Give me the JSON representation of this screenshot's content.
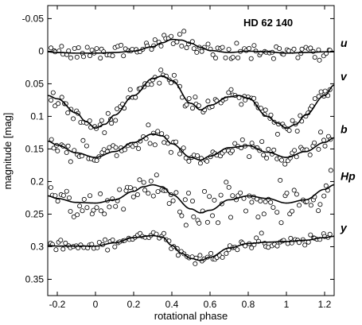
{
  "chart_data": {
    "type": "scatter",
    "title": "HD 62 140",
    "xlabel": "rotational phase",
    "ylabel": "magnitude [mag]",
    "xlim": [
      -0.25,
      1.25
    ],
    "ylim": [
      -0.07,
      0.375
    ],
    "y_inverted": true,
    "grid": false,
    "x_ticks": [
      -0.2,
      0,
      0.2,
      0.4,
      0.6,
      0.8,
      1,
      1.2
    ],
    "x_tick_labels": [
      "-0.2",
      "0",
      "0.2",
      "0.4",
      "0.6",
      "0.8",
      "1",
      "1.2"
    ],
    "y_ticks": [
      -0.05,
      0,
      0.05,
      0.1,
      0.15,
      0.2,
      0.25,
      0.3,
      0.35
    ],
    "y_tick_labels": [
      "-0.05",
      "0",
      "0.05",
      "0.1",
      "0.15",
      "0.2",
      "0.25",
      "0.3",
      "0.35"
    ],
    "series": [
      {
        "name": "u",
        "fit_x": [
          -0.25,
          -0.2,
          -0.1,
          0,
          0.1,
          0.2,
          0.3,
          0.35,
          0.4,
          0.45,
          0.5,
          0.55,
          0.6,
          0.7,
          0.8,
          0.9,
          1,
          1.1,
          1.2,
          1.25
        ],
        "fit_y": [
          0.001,
          0.002,
          0.003,
          0.003,
          0.002,
          0.0,
          -0.007,
          -0.013,
          -0.018,
          -0.017,
          -0.012,
          -0.006,
          -0.001,
          0.002,
          0.0,
          0.001,
          0.003,
          0.002,
          0.001,
          0.001
        ],
        "scatter": 0.006
      },
      {
        "name": "v",
        "fit_x": [
          -0.25,
          -0.2,
          -0.1,
          -0.05,
          0,
          0.05,
          0.1,
          0.2,
          0.3,
          0.35,
          0.4,
          0.5,
          0.55,
          0.6,
          0.7,
          0.75,
          0.8,
          0.9,
          0.95,
          1,
          1.05,
          1.1,
          1.2,
          1.25
        ],
        "fit_y": [
          0.068,
          0.073,
          0.095,
          0.108,
          0.118,
          0.112,
          0.098,
          0.068,
          0.042,
          0.038,
          0.045,
          0.08,
          0.09,
          0.083,
          0.07,
          0.068,
          0.072,
          0.1,
          0.11,
          0.118,
          0.112,
          0.098,
          0.068,
          0.052
        ],
        "scatter": 0.006
      },
      {
        "name": "b",
        "fit_x": [
          -0.25,
          -0.2,
          -0.1,
          0,
          0.1,
          0.2,
          0.3,
          0.35,
          0.4,
          0.5,
          0.55,
          0.6,
          0.7,
          0.8,
          0.9,
          1,
          1.1,
          1.2,
          1.25
        ],
        "fit_y": [
          0.138,
          0.144,
          0.156,
          0.163,
          0.154,
          0.14,
          0.127,
          0.13,
          0.142,
          0.163,
          0.167,
          0.161,
          0.148,
          0.145,
          0.155,
          0.163,
          0.154,
          0.14,
          0.133
        ],
        "scatter": 0.006
      },
      {
        "name": "Hp",
        "fit_x": [
          -0.25,
          -0.2,
          -0.1,
          0,
          0.1,
          0.2,
          0.25,
          0.3,
          0.35,
          0.4,
          0.5,
          0.55,
          0.6,
          0.7,
          0.8,
          0.9,
          1,
          1.1,
          1.2,
          1.25
        ],
        "fit_y": [
          0.222,
          0.226,
          0.232,
          0.233,
          0.228,
          0.215,
          0.208,
          0.205,
          0.208,
          0.22,
          0.242,
          0.248,
          0.244,
          0.228,
          0.222,
          0.226,
          0.233,
          0.228,
          0.212,
          0.205
        ],
        "scatter": 0.013
      },
      {
        "name": "y",
        "fit_x": [
          -0.25,
          -0.2,
          -0.1,
          0,
          0.1,
          0.2,
          0.3,
          0.35,
          0.4,
          0.45,
          0.5,
          0.55,
          0.6,
          0.7,
          0.8,
          0.9,
          1,
          1.1,
          1.2,
          1.25
        ],
        "fit_y": [
          0.298,
          0.299,
          0.299,
          0.299,
          0.294,
          0.286,
          0.283,
          0.285,
          0.298,
          0.31,
          0.318,
          0.321,
          0.316,
          0.302,
          0.295,
          0.293,
          0.292,
          0.29,
          0.286,
          0.284
        ],
        "scatter": 0.005
      }
    ]
  }
}
